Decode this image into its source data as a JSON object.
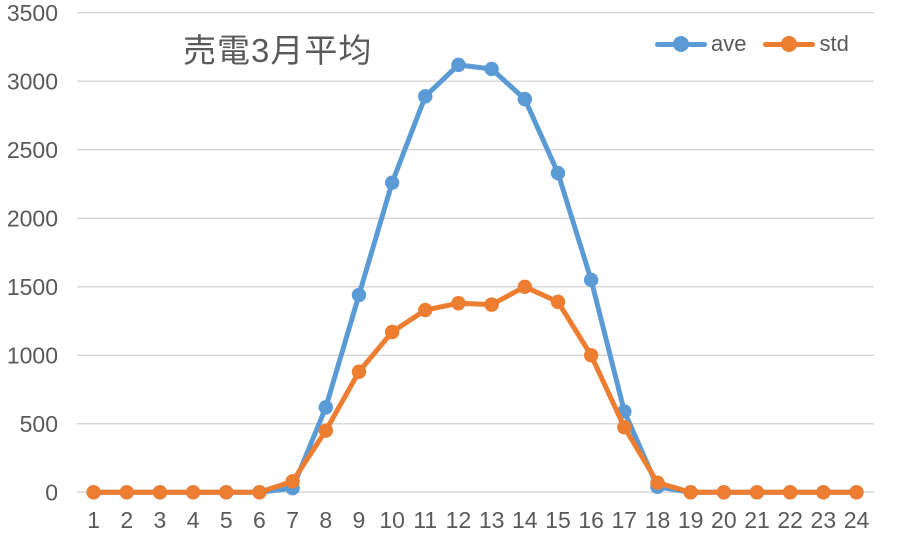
{
  "colors": {
    "background": "#FFFFFF",
    "grid": "#D9D9D9",
    "axis_text": "#595959",
    "title_text": "#595959",
    "ave": "#5B9BD5",
    "std": "#ED7D31"
  },
  "legend": {
    "items": [
      {
        "label": "ave",
        "color": "#5B9BD5"
      },
      {
        "label": "std",
        "color": "#ED7D31"
      }
    ]
  },
  "chart_data": {
    "type": "line",
    "title": "売電3月平均",
    "x": [
      1,
      2,
      3,
      4,
      5,
      6,
      7,
      8,
      9,
      10,
      11,
      12,
      13,
      14,
      15,
      16,
      17,
      18,
      19,
      20,
      21,
      22,
      23,
      24
    ],
    "series": [
      {
        "name": "ave",
        "color": "#5B9BD5",
        "marker": "circle",
        "values": [
          0,
          0,
          0,
          0,
          0,
          0,
          30,
          620,
          1440,
          2260,
          2890,
          3120,
          3090,
          2870,
          2330,
          1550,
          590,
          40,
          0,
          0,
          0,
          0,
          0,
          0
        ]
      },
      {
        "name": "std",
        "color": "#ED7D31",
        "marker": "circle",
        "values": [
          0,
          0,
          0,
          0,
          0,
          0,
          80,
          450,
          880,
          1170,
          1330,
          1380,
          1370,
          1500,
          1390,
          1000,
          475,
          70,
          0,
          0,
          0,
          0,
          0,
          0
        ]
      }
    ],
    "xlabel": "",
    "ylabel": "",
    "ylim": [
      0,
      3500
    ],
    "yticks": [
      0,
      500,
      1000,
      1500,
      2000,
      2500,
      3000,
      3500
    ],
    "grid": true,
    "legend_position": "top-right"
  }
}
